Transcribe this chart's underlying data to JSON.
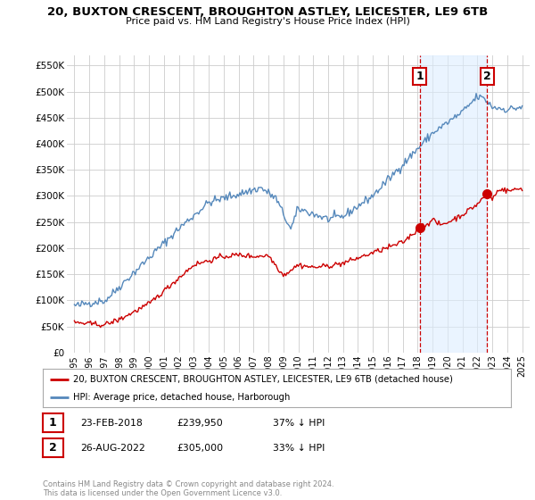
{
  "title": "20, BUXTON CRESCENT, BROUGHTON ASTLEY, LEICESTER, LE9 6TB",
  "subtitle": "Price paid vs. HM Land Registry's House Price Index (HPI)",
  "red_label": "20, BUXTON CRESCENT, BROUGHTON ASTLEY, LEICESTER, LE9 6TB (detached house)",
  "blue_label": "HPI: Average price, detached house, Harborough",
  "annotation1": {
    "num": "1",
    "date": "23-FEB-2018",
    "price": "£239,950",
    "pct": "37% ↓ HPI",
    "year": 2018.15
  },
  "annotation2": {
    "num": "2",
    "date": "26-AUG-2022",
    "price": "£305,000",
    "pct": "33% ↓ HPI",
    "year": 2022.65
  },
  "red_price1": 239950,
  "red_price2": 305000,
  "red_year1": 2018.15,
  "red_year2": 2022.65,
  "red_color": "#cc0000",
  "blue_color": "#5588bb",
  "blue_fill_color": "#ddeeff",
  "ylim": [
    0,
    570000
  ],
  "yticks": [
    0,
    50000,
    100000,
    150000,
    200000,
    250000,
    300000,
    350000,
    400000,
    450000,
    500000,
    550000
  ],
  "ytick_labels": [
    "£0",
    "£50K",
    "£100K",
    "£150K",
    "£200K",
    "£250K",
    "£300K",
    "£350K",
    "£400K",
    "£450K",
    "£500K",
    "£550K"
  ],
  "footer": "Contains HM Land Registry data © Crown copyright and database right 2024.\nThis data is licensed under the Open Government Licence v3.0.",
  "bg_color": "#ffffff",
  "grid_color": "#cccccc"
}
